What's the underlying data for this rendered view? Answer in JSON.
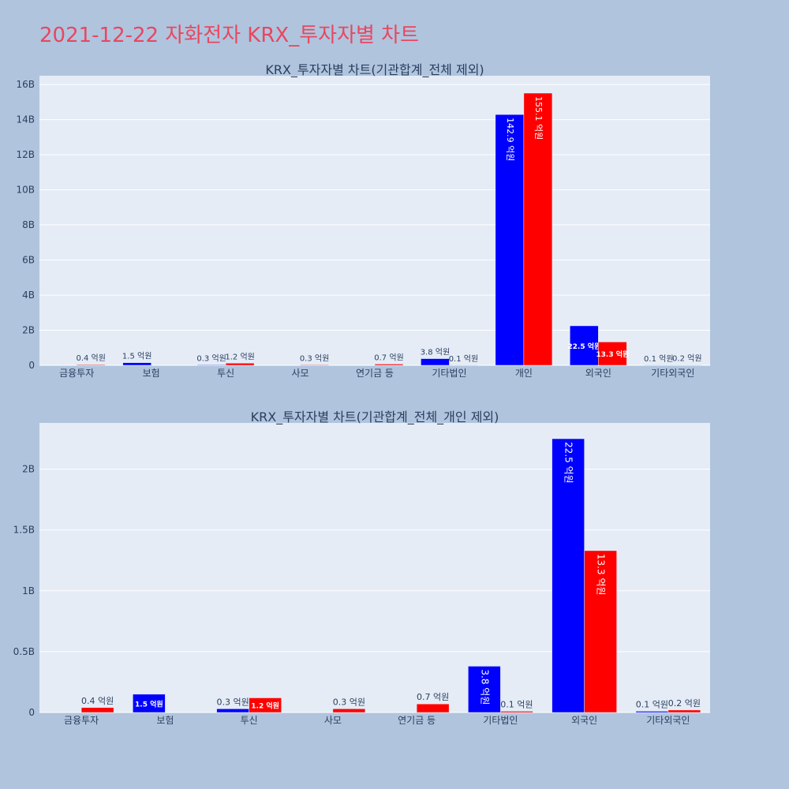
{
  "page_title": "2021-12-22 자화전자 KRX_투자자별 차트",
  "colors": {
    "series1": "#0000ff",
    "series2": "#ff0000",
    "plot_bg": "#e5ecf6",
    "page_bg": "#b0c4de",
    "text": "#2a3f5f"
  },
  "chart_data": [
    {
      "type": "bar",
      "title": "KRX_투자자별 차트(기관합계_전체 제외)",
      "categories": [
        "금융투자",
        "보험",
        "투신",
        "사모",
        "연기금 등",
        "기타법인",
        "개인",
        "외국인",
        "기타외국인"
      ],
      "series": [
        {
          "values": [
            0.0,
            0.15,
            0.03,
            0.0,
            0.0,
            0.38,
            14.29,
            2.25,
            0.01
          ],
          "labels": [
            "",
            "1.5 억원",
            "0.3 억원",
            "",
            "",
            "3.8 억원",
            "142.9 억원",
            "22.5 억원",
            "0.1 억원"
          ]
        },
        {
          "values": [
            0.04,
            0.0,
            0.12,
            0.03,
            0.07,
            0.01,
            15.51,
            1.33,
            0.02
          ],
          "labels": [
            "0.4 억원",
            "",
            "1.2 억원",
            "0.3 억원",
            "0.7 억원",
            "0.1 억원",
            "155.1 억원",
            "13.3 억원",
            "0.2 억원"
          ]
        }
      ],
      "ylim": [
        0,
        16.5
      ],
      "yticks": [
        0,
        2,
        4,
        6,
        8,
        10,
        12,
        14,
        16
      ],
      "ytick_labels": [
        "0",
        "2B",
        "4B",
        "6B",
        "8B",
        "10B",
        "12B",
        "14B",
        "16B"
      ],
      "grid": true
    },
    {
      "type": "bar",
      "title": "KRX_투자자별 차트(기관합계_전체_개인 제외)",
      "categories": [
        "금융투자",
        "보험",
        "투신",
        "사모",
        "연기금 등",
        "기타법인",
        "외국인",
        "기타외국인"
      ],
      "series": [
        {
          "values": [
            0.0,
            0.15,
            0.03,
            0.0,
            0.0,
            0.38,
            2.25,
            0.01
          ],
          "labels": [
            "",
            "1.5 억원",
            "0.3 억원",
            "",
            "",
            "3.8 억원",
            "22.5 억원",
            "0.1 억원"
          ]
        },
        {
          "values": [
            0.04,
            0.0,
            0.12,
            0.03,
            0.07,
            0.01,
            1.33,
            0.02
          ],
          "labels": [
            "0.4 억원",
            "",
            "1.2 억원",
            "0.3 억원",
            "0.7 억원",
            "0.1 억원",
            "13.3 억원",
            "0.2 억원"
          ]
        }
      ],
      "ylim": [
        0,
        2.38
      ],
      "yticks": [
        0,
        0.5,
        1,
        1.5,
        2
      ],
      "ytick_labels": [
        "0",
        "0.5B",
        "1B",
        "1.5B",
        "2B"
      ],
      "grid": true
    }
  ]
}
